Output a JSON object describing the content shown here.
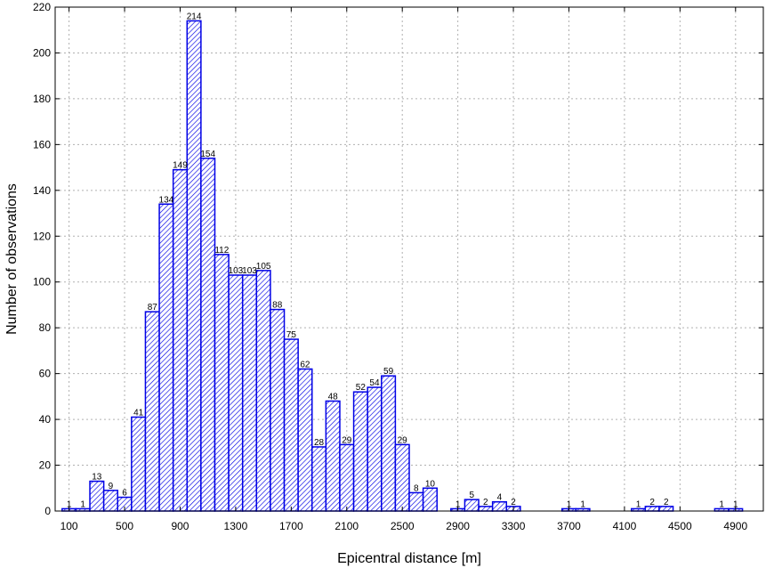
{
  "chart_data": {
    "type": "bar",
    "xlabel": "Epicentral distance [m]",
    "ylabel": "Number of observations",
    "bin_width": 100,
    "xlim": [
      0,
      5100
    ],
    "ylim": [
      0,
      220
    ],
    "y_ticks": [
      0,
      20,
      40,
      60,
      80,
      100,
      120,
      140,
      160,
      180,
      200,
      220
    ],
    "x_ticks": [
      100,
      500,
      900,
      1300,
      1700,
      2100,
      2500,
      2900,
      3300,
      3700,
      4100,
      4500,
      4900
    ],
    "grid": true,
    "bar_color": "#0000e6",
    "bins": [
      {
        "center": 100,
        "value": 1
      },
      {
        "center": 200,
        "value": 1
      },
      {
        "center": 300,
        "value": 13
      },
      {
        "center": 400,
        "value": 9
      },
      {
        "center": 500,
        "value": 6
      },
      {
        "center": 600,
        "value": 41
      },
      {
        "center": 700,
        "value": 87
      },
      {
        "center": 800,
        "value": 134
      },
      {
        "center": 900,
        "value": 149
      },
      {
        "center": 1000,
        "value": 214
      },
      {
        "center": 1100,
        "value": 154
      },
      {
        "center": 1200,
        "value": 112
      },
      {
        "center": 1300,
        "value": 103
      },
      {
        "center": 1400,
        "value": 103
      },
      {
        "center": 1500,
        "value": 105
      },
      {
        "center": 1600,
        "value": 88
      },
      {
        "center": 1700,
        "value": 75
      },
      {
        "center": 1800,
        "value": 62
      },
      {
        "center": 1900,
        "value": 28
      },
      {
        "center": 2000,
        "value": 48
      },
      {
        "center": 2100,
        "value": 29
      },
      {
        "center": 2200,
        "value": 52
      },
      {
        "center": 2300,
        "value": 54
      },
      {
        "center": 2400,
        "value": 59
      },
      {
        "center": 2500,
        "value": 29
      },
      {
        "center": 2600,
        "value": 8
      },
      {
        "center": 2700,
        "value": 10
      },
      {
        "center": 2900,
        "value": 1
      },
      {
        "center": 3000,
        "value": 5
      },
      {
        "center": 3100,
        "value": 2
      },
      {
        "center": 3200,
        "value": 4
      },
      {
        "center": 3300,
        "value": 2
      },
      {
        "center": 3700,
        "value": 1
      },
      {
        "center": 3800,
        "value": 1
      },
      {
        "center": 4200,
        "value": 1
      },
      {
        "center": 4300,
        "value": 2
      },
      {
        "center": 4400,
        "value": 2
      },
      {
        "center": 4800,
        "value": 1
      },
      {
        "center": 4900,
        "value": 1
      }
    ]
  }
}
